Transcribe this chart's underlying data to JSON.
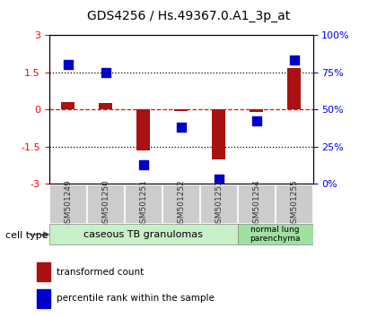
{
  "title": "GDS4256 / Hs.49367.0.A1_3p_at",
  "samples": [
    "GSM501249",
    "GSM501250",
    "GSM501251",
    "GSM501252",
    "GSM501253",
    "GSM501254",
    "GSM501255"
  ],
  "red_values": [
    0.3,
    0.25,
    -1.65,
    -0.05,
    -2.0,
    -0.12,
    1.65
  ],
  "blue_values_pct": [
    80,
    75,
    13,
    38,
    3,
    42,
    83
  ],
  "ylim_left": [
    -3,
    3
  ],
  "ylim_right": [
    0,
    100
  ],
  "yticks_left": [
    -3,
    -1.5,
    0,
    1.5,
    3
  ],
  "yticks_right": [
    0,
    25,
    50,
    75,
    100
  ],
  "hlines": [
    1.5,
    0,
    -1.5
  ],
  "hline_styles": [
    "dotted",
    "dashed",
    "dotted"
  ],
  "hline_colors": [
    "black",
    "red",
    "black"
  ],
  "cell_type_groups": [
    {
      "label": "caseous TB granulomas",
      "start": 0,
      "end": 4,
      "color": "#c8f0c8"
    },
    {
      "label": "normal lung\nparenchyma",
      "start": 5,
      "end": 6,
      "color": "#a0e0a0"
    }
  ],
  "cell_type_label": "cell type",
  "legend_red": "transformed count",
  "legend_blue": "percentile rank within the sample",
  "bar_color": "#aa1111",
  "dot_color": "#0000cc",
  "bar_width": 0.35,
  "dot_size": 55,
  "bg_color": "#ffffff",
  "plot_bg": "#ffffff",
  "sample_bg": "#cccccc"
}
